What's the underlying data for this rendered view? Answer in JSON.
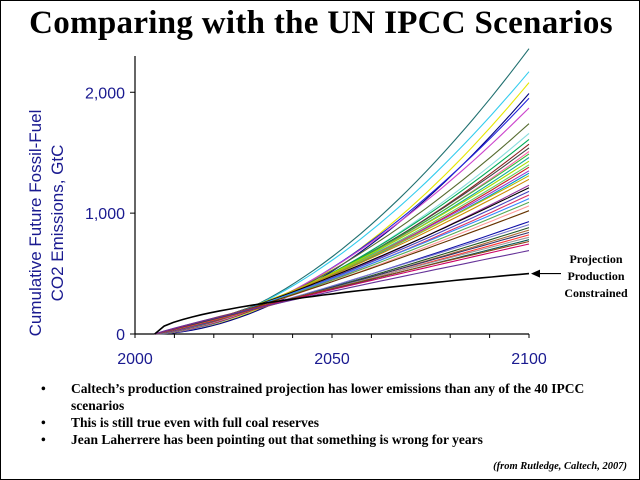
{
  "slide": {
    "title": "Comparing with the UN IPCC Scenarios",
    "bullets": [
      "Caltech’s production constrained projection has lower emissions than any of the 40 IPCC scenarios",
      "This is still true even with full coal reserves",
      "Jean Laherrere has been pointing out that something is wrong for years"
    ],
    "source": "(from Rutledge, Caltech, 2007)"
  },
  "chart_data": {
    "type": "line",
    "title": "Comparing with the UN IPCC Scenarios",
    "xlabel": "",
    "ylabel": "Cumulative Future Fossil-Fuel CO2 Emissions, GtC",
    "xlim": [
      2000,
      2100
    ],
    "ylim": [
      0,
      2300
    ],
    "x_ticks": [
      2000,
      2050,
      2100
    ],
    "x_tick_labels": [
      "2000",
      "2050",
      "2100"
    ],
    "y_ticks": [
      0,
      1000,
      2000
    ],
    "y_tick_labels": [
      "0",
      "1,000",
      "2,000"
    ],
    "series_start_year": 2005,
    "series_end_year": 2100,
    "annotation": {
      "text_lines": [
        "Projection",
        "Production",
        "Constrained"
      ],
      "points_to": [
        2100,
        500
      ]
    },
    "series": [
      {
        "color": "#1f6f6f",
        "end_value": 2360,
        "curvature": 1.75
      },
      {
        "color": "#33ccee",
        "end_value": 2170,
        "curvature": 1.7
      },
      {
        "color": "#e6e600",
        "end_value": 2080,
        "curvature": 1.8
      },
      {
        "color": "#000080",
        "end_value": 1990,
        "curvature": 1.8
      },
      {
        "color": "#2222dd",
        "end_value": 1950,
        "curvature": 1.7
      },
      {
        "color": "#cc44cc",
        "end_value": 1870,
        "curvature": 1.65
      },
      {
        "color": "#556b2f",
        "end_value": 1740,
        "curvature": 1.6
      },
      {
        "color": "#88dddd",
        "end_value": 1660,
        "curvature": 1.6
      },
      {
        "color": "#00aa55",
        "end_value": 1610,
        "curvature": 1.55
      },
      {
        "color": "#882222",
        "end_value": 1570,
        "curvature": 1.55
      },
      {
        "color": "#444444",
        "end_value": 1540,
        "curvature": 1.5
      },
      {
        "color": "#ff66aa",
        "end_value": 1510,
        "curvature": 1.5
      },
      {
        "color": "#33bb33",
        "end_value": 1490,
        "curvature": 1.45
      },
      {
        "color": "#11aa99",
        "end_value": 1460,
        "curvature": 1.45
      },
      {
        "color": "#aadd00",
        "end_value": 1430,
        "curvature": 1.4
      },
      {
        "color": "#66cc66",
        "end_value": 1400,
        "curvature": 1.4
      },
      {
        "color": "#cc2222",
        "end_value": 1380,
        "curvature": 1.4
      },
      {
        "color": "#9933cc",
        "end_value": 1350,
        "curvature": 1.35
      },
      {
        "color": "#0099cc",
        "end_value": 1330,
        "curvature": 1.35
      },
      {
        "color": "#bbbb00",
        "end_value": 1310,
        "curvature": 1.3
      },
      {
        "color": "#cc8800",
        "end_value": 1280,
        "curvature": 1.3
      },
      {
        "color": "#993399",
        "end_value": 1230,
        "curvature": 1.3
      },
      {
        "color": "#000000",
        "end_value": 1210,
        "curvature": 1.25
      },
      {
        "color": "#4444bb",
        "end_value": 1180,
        "curvature": 1.25
      },
      {
        "color": "#dd3366",
        "end_value": 1150,
        "curvature": 1.25
      },
      {
        "color": "#3388ff",
        "end_value": 1120,
        "curvature": 1.2
      },
      {
        "color": "#55aa55",
        "end_value": 1090,
        "curvature": 1.2
      },
      {
        "color": "#ff9999",
        "end_value": 1060,
        "curvature": 1.2
      },
      {
        "color": "#663300",
        "end_value": 1020,
        "curvature": 1.15
      },
      {
        "color": "#1111aa",
        "end_value": 930,
        "curvature": 1.15
      },
      {
        "color": "#7777cc",
        "end_value": 905,
        "curvature": 1.1
      },
      {
        "color": "#225522",
        "end_value": 880,
        "curvature": 1.1
      },
      {
        "color": "#aa6633",
        "end_value": 860,
        "curvature": 1.1
      },
      {
        "color": "#333366",
        "end_value": 840,
        "curvature": 1.05
      },
      {
        "color": "#ff3333",
        "end_value": 820,
        "curvature": 1.05
      },
      {
        "color": "#999999",
        "end_value": 800,
        "curvature": 1.0
      },
      {
        "color": "#005555",
        "end_value": 780,
        "curvature": 1.0
      },
      {
        "color": "#8b4513",
        "end_value": 765,
        "curvature": 0.95
      },
      {
        "color": "#cc0066",
        "end_value": 745,
        "curvature": 0.95
      },
      {
        "color": "#663399",
        "end_value": 690,
        "curvature": 0.9
      },
      {
        "color": "#000000",
        "end_value": 500,
        "curvature": 0.55,
        "highlight": true
      }
    ]
  }
}
